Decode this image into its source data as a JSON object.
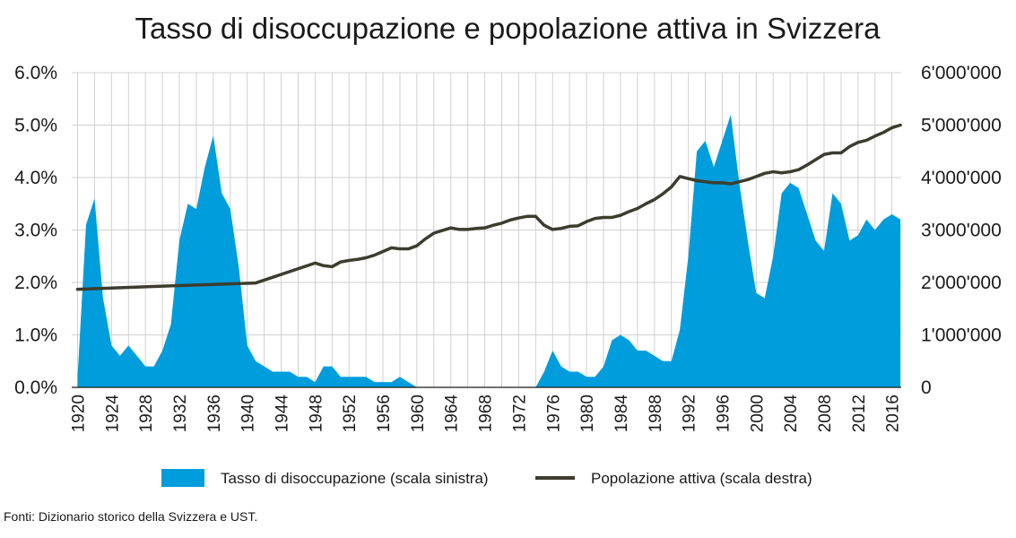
{
  "chart_data": {
    "type": "area",
    "title": "Tasso di disoccupazione e popolazione attiva in Svizzera",
    "x_tick_labels": [
      "1920",
      "1924",
      "1928",
      "1932",
      "1936",
      "1940",
      "1944",
      "1948",
      "1952",
      "1956",
      "1960",
      "1964",
      "1968",
      "1972",
      "1976",
      "1980",
      "1984",
      "1988",
      "1992",
      "1996",
      "2000",
      "2004",
      "2008",
      "2012",
      "2016"
    ],
    "y_left": {
      "ylim": [
        0,
        6
      ],
      "tick_labels": [
        "0.0%",
        "1.0%",
        "2.0%",
        "3.0%",
        "4.0%",
        "5.0%",
        "6.0%"
      ]
    },
    "y_right": {
      "ylim": [
        0,
        6000000
      ],
      "tick_labels": [
        "0",
        "1'000'000",
        "2'000'000",
        "3'000'000",
        "4'000'000",
        "5'000'000",
        "6'000'000"
      ]
    },
    "grid": "vertical",
    "legend_position": "bottom",
    "series": [
      {
        "name": "Tasso di disoccupazione (scala sinistra)",
        "type": "area",
        "axis": "left",
        "color": "#009ddc",
        "x": [
          1920,
          1921,
          1922,
          1923,
          1924,
          1925,
          1926,
          1927,
          1928,
          1929,
          1930,
          1931,
          1932,
          1933,
          1934,
          1935,
          1936,
          1937,
          1938,
          1939,
          1940,
          1941,
          1942,
          1943,
          1944,
          1945,
          1946,
          1947,
          1948,
          1949,
          1950,
          1951,
          1952,
          1953,
          1954,
          1955,
          1956,
          1957,
          1958,
          1959,
          1960,
          1961,
          1962,
          1963,
          1964,
          1965,
          1966,
          1967,
          1968,
          1969,
          1970,
          1971,
          1972,
          1973,
          1974,
          1975,
          1976,
          1977,
          1978,
          1979,
          1980,
          1981,
          1982,
          1983,
          1984,
          1985,
          1986,
          1987,
          1988,
          1989,
          1990,
          1991,
          1992,
          1993,
          1994,
          1995,
          1996,
          1997,
          1998,
          1999,
          2000,
          2001,
          2002,
          2003,
          2004,
          2005,
          2006,
          2007,
          2008,
          2009,
          2010,
          2011,
          2012,
          2013,
          2014,
          2015,
          2016,
          2017
        ],
        "y": [
          0.2,
          3.1,
          3.6,
          1.7,
          0.8,
          0.6,
          0.8,
          0.6,
          0.4,
          0.4,
          0.7,
          1.2,
          2.8,
          3.5,
          3.4,
          4.2,
          4.8,
          3.7,
          3.4,
          2.3,
          0.8,
          0.5,
          0.4,
          0.3,
          0.3,
          0.3,
          0.2,
          0.2,
          0.1,
          0.4,
          0.4,
          0.2,
          0.2,
          0.2,
          0.2,
          0.1,
          0.1,
          0.1,
          0.2,
          0.1,
          0.0,
          0,
          0,
          0,
          0,
          0,
          0,
          0,
          0,
          0,
          0,
          0,
          0,
          0,
          0.0,
          0.3,
          0.7,
          0.4,
          0.3,
          0.3,
          0.2,
          0.2,
          0.4,
          0.9,
          1.0,
          0.9,
          0.7,
          0.7,
          0.6,
          0.5,
          0.5,
          1.1,
          2.5,
          4.5,
          4.7,
          4.2,
          4.7,
          5.2,
          3.9,
          2.8,
          1.8,
          1.7,
          2.5,
          3.7,
          3.9,
          3.8,
          3.3,
          2.8,
          2.6,
          3.7,
          3.5,
          2.8,
          2.9,
          3.2,
          3.0,
          3.2,
          3.3,
          3.2
        ]
      },
      {
        "name": "Popolazione attiva (scala destra)",
        "type": "line",
        "axis": "right",
        "color": "#3d3d2e",
        "x": [
          1920,
          1930,
          1941,
          1948,
          1949,
          1950,
          1951,
          1952,
          1953,
          1954,
          1955,
          1956,
          1957,
          1958,
          1959,
          1960,
          1961,
          1962,
          1963,
          1964,
          1965,
          1966,
          1967,
          1968,
          1969,
          1970,
          1971,
          1972,
          1973,
          1974,
          1975,
          1976,
          1977,
          1978,
          1979,
          1980,
          1981,
          1982,
          1983,
          1984,
          1985,
          1986,
          1987,
          1988,
          1989,
          1990,
          1991,
          1992,
          1993,
          1994,
          1995,
          1996,
          1997,
          1998,
          1999,
          2000,
          2001,
          2002,
          2003,
          2004,
          2005,
          2006,
          2007,
          2008,
          2009,
          2010,
          2011,
          2012,
          2013,
          2014,
          2015,
          2016,
          2017
        ],
        "y": [
          1870000,
          1930000,
          1990000,
          2370000,
          2320000,
          2300000,
          2390000,
          2420000,
          2440000,
          2470000,
          2520000,
          2590000,
          2660000,
          2640000,
          2640000,
          2700000,
          2830000,
          2940000,
          2990000,
          3040000,
          3010000,
          3010000,
          3030000,
          3040000,
          3090000,
          3130000,
          3190000,
          3230000,
          3260000,
          3260000,
          3090000,
          3010000,
          3030000,
          3070000,
          3080000,
          3160000,
          3220000,
          3240000,
          3240000,
          3280000,
          3350000,
          3410000,
          3500000,
          3580000,
          3690000,
          3820000,
          4020000,
          3980000,
          3940000,
          3920000,
          3900000,
          3900000,
          3880000,
          3920000,
          3960000,
          4020000,
          4080000,
          4110000,
          4090000,
          4110000,
          4150000,
          4240000,
          4340000,
          4440000,
          4470000,
          4470000,
          4590000,
          4670000,
          4710000,
          4790000,
          4860000,
          4950000,
          5000000
        ]
      }
    ],
    "source": "Fonti: Dizionario storico della Svizzera e UST."
  }
}
